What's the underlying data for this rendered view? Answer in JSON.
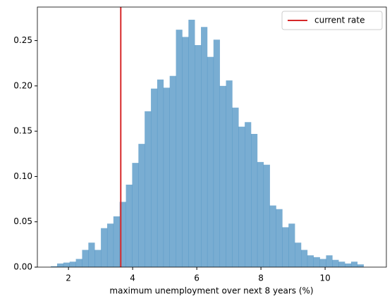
{
  "chart_data": {
    "type": "histogram",
    "xlabel": "maximum unemployment over next 8 years (%)",
    "bins": [
      1.45,
      1.645,
      1.84,
      2.035,
      2.23,
      2.425,
      2.62,
      2.815,
      3.01,
      3.205,
      3.4,
      3.595,
      3.79,
      3.985,
      4.18,
      4.375,
      4.57,
      4.765,
      4.96,
      5.155,
      5.35,
      5.545,
      5.74,
      5.935,
      6.13,
      6.325,
      6.52,
      6.715,
      6.91,
      7.105,
      7.3,
      7.495,
      7.69,
      7.885,
      8.08,
      8.275,
      8.47,
      8.665,
      8.86,
      9.055,
      9.25,
      9.445,
      9.64,
      9.835,
      10.03,
      10.225,
      10.42,
      10.615,
      10.81,
      11.005,
      11.2
    ],
    "values": [
      0.001,
      0.004,
      0.005,
      0.006,
      0.009,
      0.019,
      0.027,
      0.019,
      0.043,
      0.048,
      0.056,
      0.072,
      0.091,
      0.115,
      0.136,
      0.172,
      0.197,
      0.207,
      0.198,
      0.211,
      0.262,
      0.254,
      0.273,
      0.245,
      0.265,
      0.232,
      0.251,
      0.2,
      0.206,
      0.176,
      0.155,
      0.16,
      0.147,
      0.116,
      0.113,
      0.068,
      0.064,
      0.044,
      0.048,
      0.027,
      0.019,
      0.013,
      0.011,
      0.009,
      0.013,
      0.008,
      0.006,
      0.004,
      0.006,
      0.003
    ],
    "color": "#1f77b4",
    "alpha": 0.6,
    "xlim": [
      1.03,
      11.91
    ],
    "ylim": [
      0,
      0.287
    ],
    "xticks": [
      2,
      4,
      6,
      8,
      10
    ],
    "yticks": [
      {
        "value": 0,
        "label": "0.00"
      },
      {
        "value": 0.05,
        "label": "0.05"
      },
      {
        "value": 0.1,
        "label": "0.10"
      },
      {
        "value": 0.15,
        "label": "0.15"
      },
      {
        "value": 0.2,
        "label": "0.20"
      },
      {
        "value": 0.25,
        "label": "0.25"
      }
    ],
    "vline": {
      "x": 3.63,
      "color": "#d62728",
      "label": "current rate"
    },
    "legend": "upper right"
  }
}
